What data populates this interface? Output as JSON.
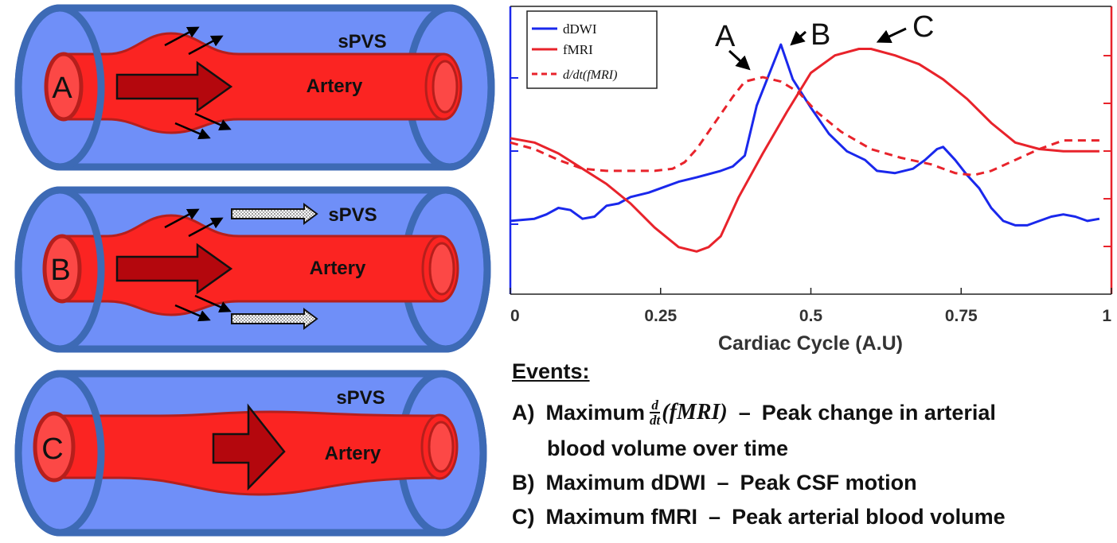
{
  "panels": [
    {
      "letter": "A",
      "space_label": "sPVS",
      "vessel_label": "Artery"
    },
    {
      "letter": "B",
      "space_label": "sPVS",
      "vessel_label": "Artery"
    },
    {
      "letter": "C",
      "space_label": "sPVS",
      "vessel_label": "Artery"
    }
  ],
  "colors": {
    "pvs_fill": "#6f8ff8",
    "pvs_border": "#3d6ab5",
    "artery": "#fb2422",
    "artery_dark": "#b61f1c",
    "flow_arrow": "#b4070d",
    "dDWI": "#1a28ec",
    "fMRI": "#e8232b"
  },
  "chart_data": {
    "type": "line",
    "xlabel": "Cardiac Cycle (A.U)",
    "xlim": [
      0,
      1
    ],
    "ylim": [
      0,
      1
    ],
    "x_ticks": [
      "0",
      "0.25",
      "0.5",
      "0.75",
      "1"
    ],
    "legend": [
      "dDWI",
      "fMRI",
      "d/dt(fMRI)"
    ],
    "legend_placement": "top-left",
    "series": [
      {
        "name": "dDWI",
        "style": "solid",
        "color": "#1a28ec",
        "x": [
          0,
          0.04,
          0.06,
          0.08,
          0.1,
          0.12,
          0.14,
          0.16,
          0.18,
          0.2,
          0.23,
          0.25,
          0.28,
          0.31,
          0.35,
          0.37,
          0.39,
          0.41,
          0.43,
          0.45,
          0.47,
          0.5,
          0.53,
          0.56,
          0.59,
          0.61,
          0.64,
          0.67,
          0.69,
          0.71,
          0.72,
          0.74,
          0.76,
          0.78,
          0.8,
          0.82,
          0.84,
          0.86,
          0.88,
          0.9,
          0.92,
          0.94,
          0.96,
          0.98
        ],
        "y": [
          0.19,
          0.2,
          0.22,
          0.25,
          0.24,
          0.2,
          0.21,
          0.26,
          0.27,
          0.3,
          0.32,
          0.34,
          0.37,
          0.39,
          0.42,
          0.44,
          0.49,
          0.72,
          0.86,
          1.0,
          0.84,
          0.71,
          0.59,
          0.51,
          0.47,
          0.42,
          0.41,
          0.43,
          0.47,
          0.52,
          0.53,
          0.47,
          0.4,
          0.34,
          0.25,
          0.19,
          0.17,
          0.17,
          0.19,
          0.21,
          0.22,
          0.21,
          0.19,
          0.2
        ]
      },
      {
        "name": "fMRI",
        "style": "solid",
        "color": "#e8232b",
        "x": [
          0,
          0.04,
          0.08,
          0.12,
          0.16,
          0.2,
          0.24,
          0.28,
          0.31,
          0.33,
          0.35,
          0.38,
          0.42,
          0.46,
          0.5,
          0.54,
          0.58,
          0.6,
          0.64,
          0.68,
          0.72,
          0.76,
          0.8,
          0.84,
          0.88,
          0.92,
          0.96,
          0.98
        ],
        "y": [
          0.57,
          0.55,
          0.5,
          0.43,
          0.36,
          0.27,
          0.16,
          0.07,
          0.05,
          0.07,
          0.12,
          0.3,
          0.5,
          0.69,
          0.87,
          0.95,
          0.98,
          0.98,
          0.95,
          0.91,
          0.84,
          0.75,
          0.64,
          0.55,
          0.52,
          0.51,
          0.51,
          0.51
        ]
      },
      {
        "name": "d/dt(fMRI)",
        "style": "dashed",
        "color": "#e8232b",
        "x": [
          0,
          0.04,
          0.08,
          0.12,
          0.16,
          0.2,
          0.24,
          0.27,
          0.29,
          0.31,
          0.33,
          0.35,
          0.37,
          0.39,
          0.42,
          0.45,
          0.48,
          0.51,
          0.55,
          0.6,
          0.65,
          0.7,
          0.74,
          0.77,
          0.8,
          0.84,
          0.88,
          0.92,
          0.96,
          0.98
        ],
        "y": [
          0.55,
          0.52,
          0.47,
          0.43,
          0.42,
          0.42,
          0.42,
          0.43,
          0.46,
          0.52,
          0.6,
          0.68,
          0.76,
          0.83,
          0.85,
          0.83,
          0.78,
          0.69,
          0.6,
          0.52,
          0.48,
          0.45,
          0.41,
          0.4,
          0.42,
          0.47,
          0.52,
          0.56,
          0.56,
          0.56
        ]
      }
    ],
    "annotations": [
      {
        "label": "A",
        "x": 0.42,
        "y": 0.85
      },
      {
        "label": "B",
        "x": 0.45,
        "y": 1.0
      },
      {
        "label": "C",
        "x": 0.59,
        "y": 0.98
      }
    ]
  },
  "events": {
    "heading": "Events:",
    "a_prefix": "A)",
    "a_word": "Maximum",
    "frac_num": "d",
    "frac_den": "dt",
    "a_term": "(fMRI)",
    "a_dash": "–",
    "a_text1": "Peak change in arterial",
    "a_text2": "blood volume over time",
    "b_prefix": "B)",
    "b_lead": "Maximum dDWI",
    "b_dash": "–",
    "b_text": "Peak CSF motion",
    "c_prefix": "C)",
    "c_lead": "Maximum fMRI",
    "c_dash": "–",
    "c_text": "Peak arterial blood volume"
  }
}
